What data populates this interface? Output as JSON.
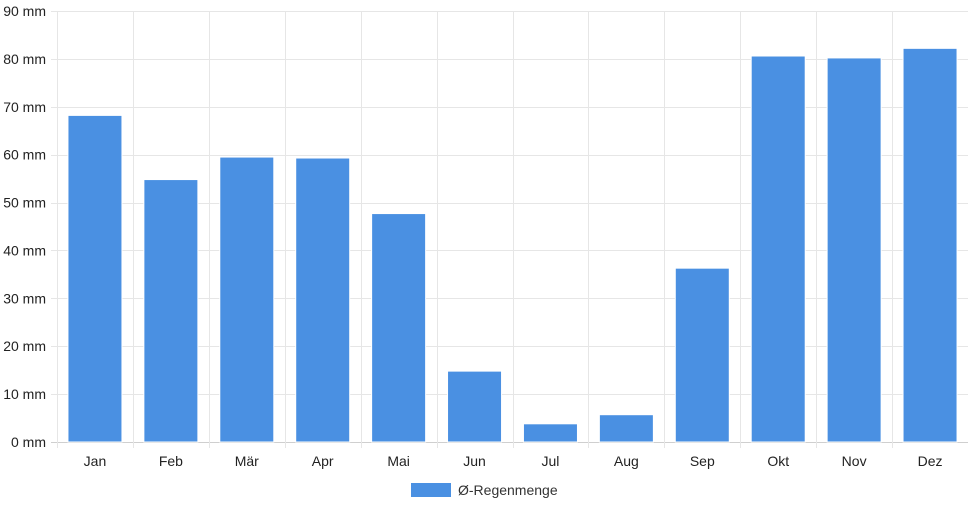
{
  "chart_data": {
    "type": "bar",
    "categories": [
      "Jan",
      "Feb",
      "Mär",
      "Apr",
      "Mai",
      "Jun",
      "Jul",
      "Aug",
      "Sep",
      "Okt",
      "Nov",
      "Dez"
    ],
    "series": [
      {
        "name": "Ø-Regenmenge",
        "color": "#4a90e2",
        "values": [
          68.2,
          54.8,
          59.5,
          59.3,
          47.7,
          14.8,
          3.8,
          5.7,
          36.3,
          80.6,
          80.2,
          82.2
        ]
      }
    ],
    "ylim": [
      0,
      90
    ],
    "y_tick_step": 10,
    "y_unit_suffix": " mm",
    "grid": true,
    "legend_position": "bottom",
    "xlabel": "",
    "ylabel": "",
    "title": ""
  }
}
